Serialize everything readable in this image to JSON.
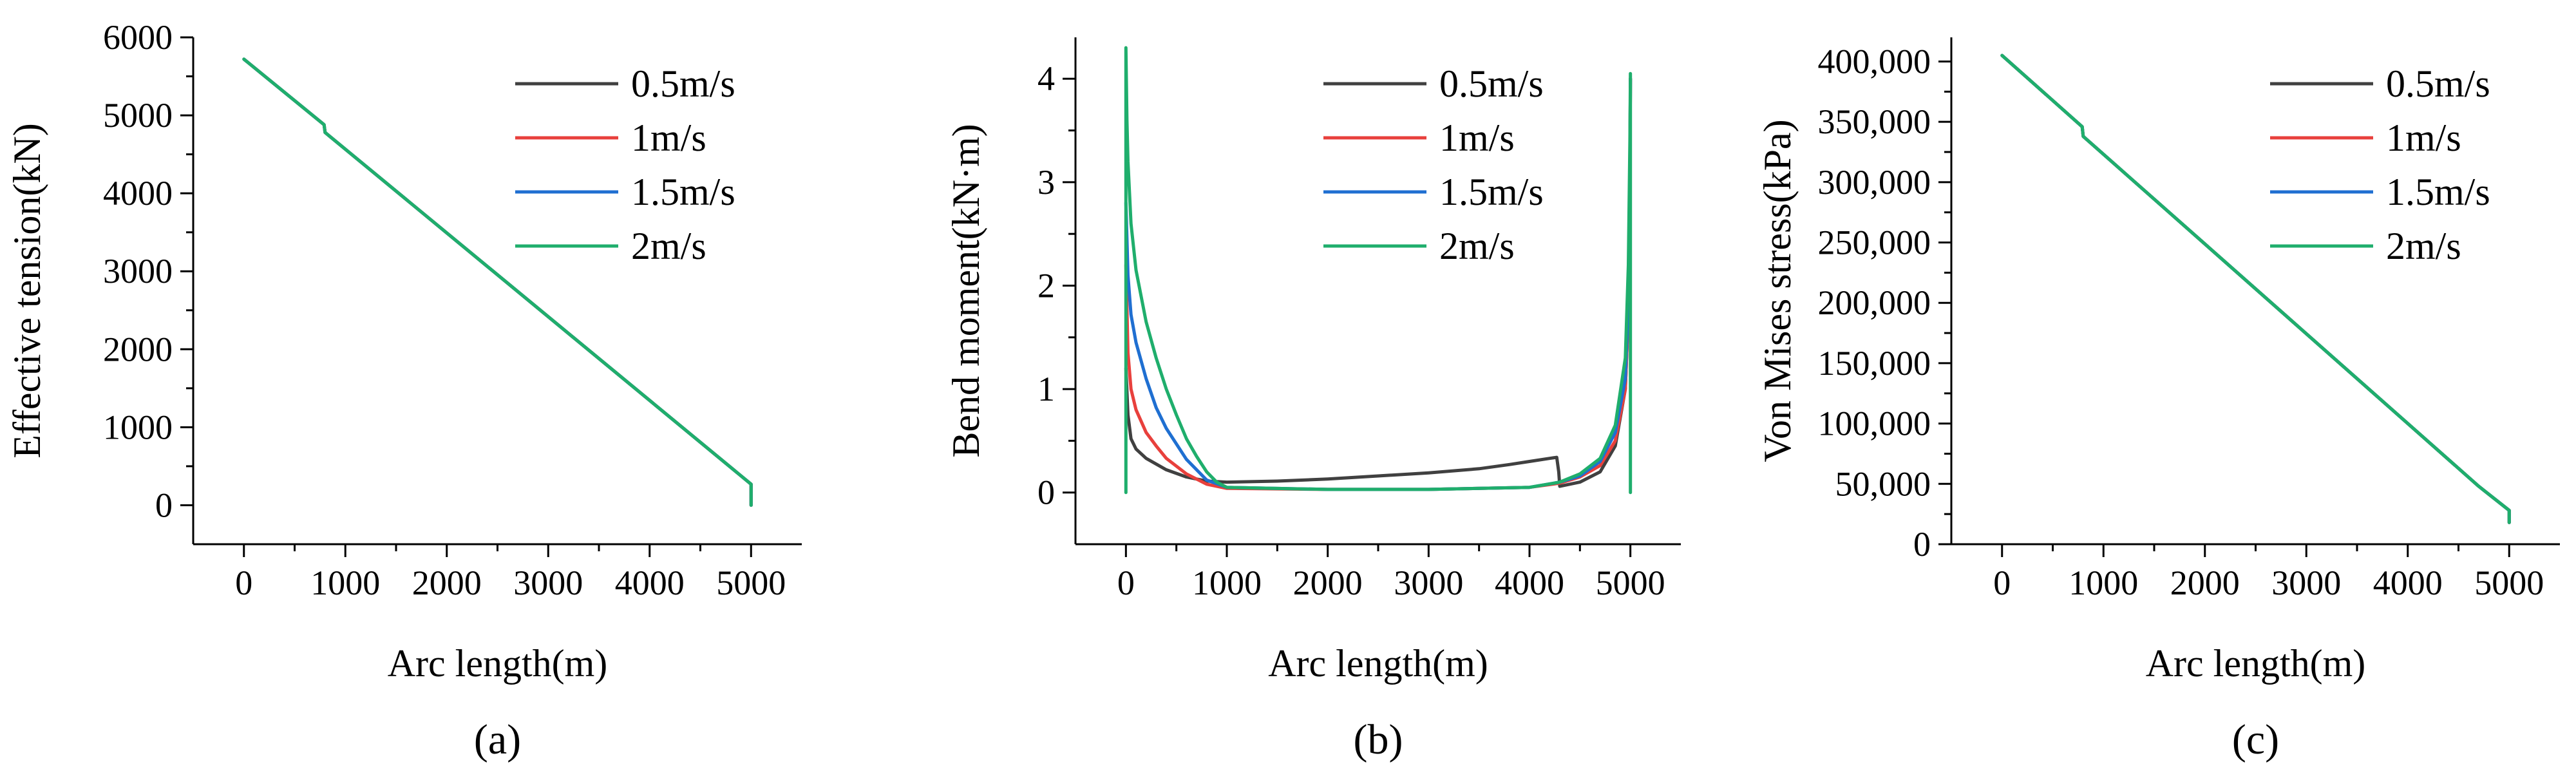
{
  "chart_data": [
    {
      "type": "line",
      "panel_label": "(a)",
      "title": "",
      "xlabel": "Arc length(m)",
      "ylabel": "Effective tension(kN)",
      "xlim": [
        -500,
        5500
      ],
      "ylim": [
        -500,
        6000
      ],
      "xticks": [
        0,
        1000,
        2000,
        3000,
        4000,
        5000
      ],
      "xtick_labels": [
        "0",
        "1000",
        "2000",
        "3000",
        "4000",
        "5000"
      ],
      "yticks": [
        0,
        1000,
        2000,
        3000,
        4000,
        5000,
        6000
      ],
      "ytick_labels": [
        "0",
        "1000",
        "2000",
        "3000",
        "4000",
        "5000",
        "6000"
      ],
      "legend_position": "top-right",
      "series": [
        {
          "name": "0.5m/s",
          "color": "#404040",
          "x": [
            0,
            790,
            800,
            5000,
            5000
          ],
          "y": [
            5720,
            4880,
            4780,
            270,
            0
          ]
        },
        {
          "name": "1m/s",
          "color": "#e8403c",
          "x": [
            0,
            790,
            800,
            5000,
            5000
          ],
          "y": [
            5720,
            4880,
            4780,
            270,
            0
          ]
        },
        {
          "name": "1.5m/s",
          "color": "#1f6fd1",
          "x": [
            0,
            790,
            800,
            5000,
            5000
          ],
          "y": [
            5720,
            4880,
            4780,
            270,
            0
          ]
        },
        {
          "name": "2m/s",
          "color": "#1fae6c",
          "x": [
            0,
            790,
            800,
            5000,
            5000
          ],
          "y": [
            5720,
            4880,
            4780,
            270,
            0
          ]
        }
      ]
    },
    {
      "type": "line",
      "panel_label": "(b)",
      "title": "",
      "xlabel": "Arc length(m)",
      "ylabel": "Bend moment(kN·m)",
      "xlim": [
        -500,
        5500
      ],
      "ylim": [
        -0.5,
        4.4
      ],
      "xticks": [
        0,
        1000,
        2000,
        3000,
        4000,
        5000
      ],
      "xtick_labels": [
        "0",
        "1000",
        "2000",
        "3000",
        "4000",
        "5000"
      ],
      "yticks": [
        0,
        1,
        2,
        3,
        4
      ],
      "ytick_labels": [
        "0",
        "1",
        "2",
        "3",
        "4"
      ],
      "legend_position": "top-right",
      "series": [
        {
          "name": "0.5m/s",
          "color": "#404040",
          "x": [
            0,
            20,
            50,
            100,
            200,
            400,
            600,
            800,
            1000,
            1500,
            2000,
            2500,
            3000,
            3500,
            3800,
            4000,
            4200,
            4270,
            4290,
            4300,
            4500,
            4700,
            4850,
            4950,
            4990,
            5000
          ],
          "y": [
            1.2,
            0.75,
            0.52,
            0.42,
            0.33,
            0.22,
            0.15,
            0.11,
            0.1,
            0.11,
            0.13,
            0.16,
            0.19,
            0.23,
            0.27,
            0.3,
            0.33,
            0.34,
            0.2,
            0.06,
            0.1,
            0.2,
            0.45,
            1.0,
            2.0,
            4.0
          ]
        },
        {
          "name": "1m/s",
          "color": "#e8403c",
          "x": [
            0,
            20,
            50,
            100,
            200,
            300,
            400,
            600,
            800,
            1000,
            2000,
            3000,
            4000,
            4300,
            4500,
            4700,
            4850,
            4950,
            4990,
            5000
          ],
          "y": [
            2.2,
            1.35,
            1.0,
            0.8,
            0.58,
            0.45,
            0.33,
            0.18,
            0.08,
            0.04,
            0.03,
            0.03,
            0.05,
            0.09,
            0.15,
            0.26,
            0.5,
            1.0,
            2.0,
            4.0
          ]
        },
        {
          "name": "1.5m/s",
          "color": "#1f6fd1",
          "x": [
            0,
            20,
            50,
            100,
            200,
            300,
            400,
            600,
            800,
            1000,
            2000,
            3000,
            4000,
            4300,
            4500,
            4700,
            4850,
            4950,
            4990,
            5000
          ],
          "y": [
            2.8,
            2.1,
            1.72,
            1.45,
            1.1,
            0.82,
            0.62,
            0.32,
            0.12,
            0.05,
            0.03,
            0.03,
            0.05,
            0.1,
            0.16,
            0.3,
            0.58,
            1.1,
            2.1,
            4.0
          ]
        },
        {
          "name": "2m/s",
          "color": "#1fae6c",
          "x": [
            0,
            0,
            10,
            20,
            50,
            100,
            200,
            300,
            400,
            500,
            600,
            700,
            800,
            900,
            1000,
            2000,
            3000,
            4000,
            4300,
            4500,
            4700,
            4850,
            4950,
            4980,
            4995,
            5000,
            5000
          ],
          "y": [
            0,
            4.3,
            3.6,
            3.2,
            2.6,
            2.15,
            1.65,
            1.3,
            1.0,
            0.75,
            0.52,
            0.35,
            0.2,
            0.1,
            0.05,
            0.03,
            0.03,
            0.05,
            0.1,
            0.18,
            0.33,
            0.65,
            1.3,
            2.2,
            3.4,
            4.05,
            0
          ]
        }
      ]
    },
    {
      "type": "line",
      "panel_label": "(c)",
      "title": "",
      "xlabel": "Arc length(m)",
      "ylabel": "Von Mises stress(kPa)",
      "xlim": [
        -500,
        5500
      ],
      "ylim": [
        0,
        420000
      ],
      "xticks": [
        0,
        1000,
        2000,
        3000,
        4000,
        5000
      ],
      "xtick_labels": [
        "0",
        "1000",
        "2000",
        "3000",
        "4000",
        "5000"
      ],
      "yticks": [
        0,
        50000,
        100000,
        150000,
        200000,
        250000,
        300000,
        350000,
        400000
      ],
      "ytick_labels": [
        "0",
        "50,000",
        "100,000",
        "150,000",
        "200,000",
        "250,000",
        "300,000",
        "350,000",
        "400,000"
      ],
      "legend_position": "top-right",
      "series": [
        {
          "name": "0.5m/s",
          "color": "#404040",
          "x": [
            0,
            790,
            800,
            4700,
            5000,
            5000
          ],
          "y": [
            405000,
            346000,
            338000,
            48000,
            28000,
            18000
          ]
        },
        {
          "name": "1m/s",
          "color": "#e8403c",
          "x": [
            0,
            790,
            800,
            4700,
            5000,
            5000
          ],
          "y": [
            405000,
            346000,
            338000,
            48000,
            28000,
            18000
          ]
        },
        {
          "name": "1.5m/s",
          "color": "#1f6fd1",
          "x": [
            0,
            790,
            800,
            4700,
            5000,
            5000
          ],
          "y": [
            405000,
            346000,
            338000,
            48000,
            28000,
            18000
          ]
        },
        {
          "name": "2m/s",
          "color": "#1fae6c",
          "x": [
            0,
            790,
            800,
            4700,
            5000,
            5000
          ],
          "y": [
            405000,
            346000,
            338000,
            48000,
            28000,
            18000
          ]
        }
      ]
    }
  ]
}
